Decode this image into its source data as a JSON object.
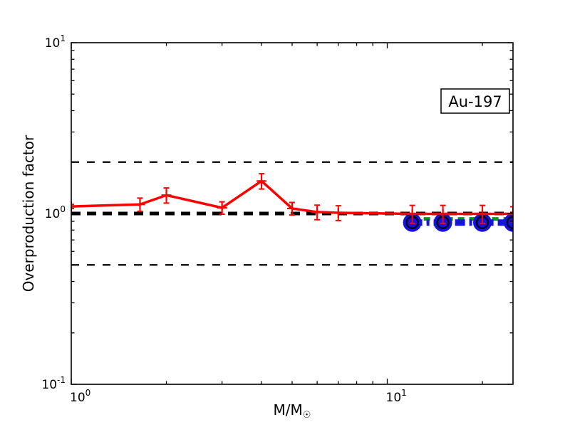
{
  "figure": {
    "background": "#ffffff",
    "frame_color": "#000000"
  },
  "chart_data": {
    "type": "line",
    "title": "",
    "xlabel_main": "M/M",
    "xlabel_sub": "☉",
    "ylabel": "Overproduction factor",
    "xscale": "log",
    "yscale": "log",
    "xlim": [
      1,
      25
    ],
    "ylim": [
      0.1,
      10
    ],
    "grid": false,
    "legend": "none",
    "annotation": {
      "label": "Au-197"
    },
    "x_major_ticks": [
      {
        "value": 1,
        "base": "10",
        "exp": "0"
      },
      {
        "value": 10,
        "base": "10",
        "exp": "1"
      }
    ],
    "x_minor_ticks": [
      2,
      3,
      4,
      5,
      6,
      7,
      8,
      9,
      20
    ],
    "y_major_ticks": [
      {
        "value": 0.1,
        "base": "10",
        "exp": "-1"
      },
      {
        "value": 1,
        "base": "10",
        "exp": "0"
      },
      {
        "value": 10,
        "base": "10",
        "exp": "1"
      }
    ],
    "y_minor_ticks": [
      0.2,
      0.3,
      0.4,
      0.5,
      0.6,
      0.7,
      0.8,
      0.9,
      2,
      3,
      4,
      5,
      6,
      7,
      8,
      9
    ],
    "reference_lines": [
      {
        "name": "factor-2-upper",
        "value": 2.0,
        "color": "#000000",
        "style": "dashed",
        "weight": "thin",
        "z": 0
      },
      {
        "name": "factor-2-lower",
        "value": 0.5,
        "color": "#000000",
        "style": "dashed",
        "weight": "thin",
        "z": 0
      },
      {
        "name": "unity",
        "value": 1.0,
        "color": "#000000",
        "style": "dashed",
        "weight": "thick",
        "z": 3
      }
    ],
    "series": [
      {
        "name": "green-dashed-model",
        "color": "#009900",
        "line": "dashed",
        "marker": "none",
        "z": 1,
        "x": [
          12,
          15,
          20,
          25
        ],
        "y": [
          0.93,
          0.93,
          0.93,
          0.93
        ]
      },
      {
        "name": "blue-dashdot-model",
        "color": "#1414dc",
        "edge_color": "#00002a",
        "line": "dashdot",
        "marker": "circle",
        "z": 2,
        "x": [
          12,
          15,
          20,
          25
        ],
        "y": [
          0.885,
          0.885,
          0.885,
          0.885
        ]
      },
      {
        "name": "red-errorbar-model",
        "color": "#ff0000",
        "line": "solid",
        "marker": "plus",
        "z": 4,
        "x": [
          1,
          1.65,
          2,
          3,
          4,
          5,
          6,
          7,
          12,
          15,
          20,
          25
        ],
        "y": [
          1.1,
          1.13,
          1.28,
          1.08,
          1.55,
          1.07,
          1.02,
          1.01,
          0.995,
          0.995,
          0.995,
          0.995
        ],
        "yerr": [
          0.03,
          0.1,
          0.13,
          0.09,
          0.16,
          0.09,
          0.1,
          0.1,
          0.12,
          0.12,
          0.12,
          0.1
        ]
      }
    ]
  }
}
